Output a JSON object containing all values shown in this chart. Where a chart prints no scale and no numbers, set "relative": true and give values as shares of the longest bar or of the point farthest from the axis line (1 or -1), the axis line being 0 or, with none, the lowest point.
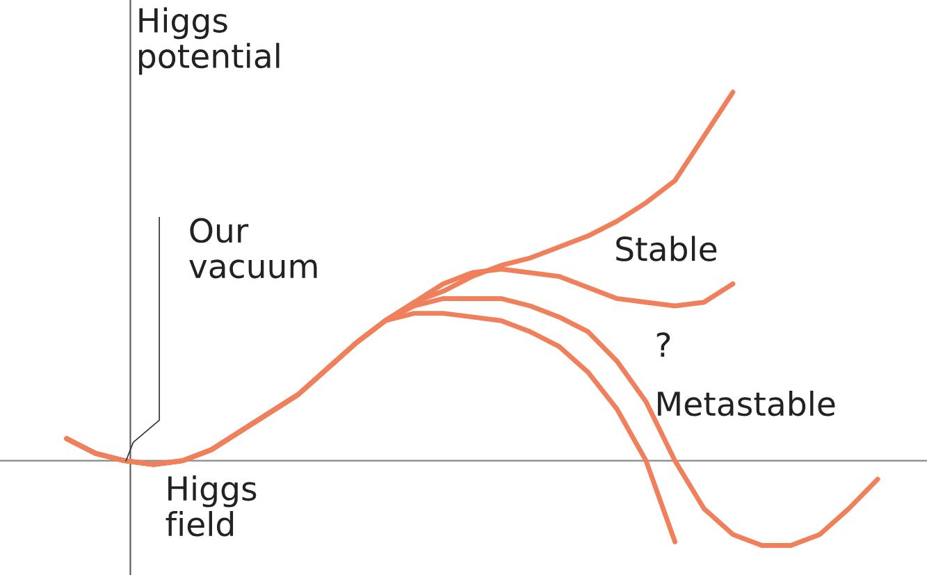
{
  "chart_data": {
    "type": "line",
    "relative": true,
    "ylabel": "Higgs\npotential",
    "xlabel": "Higgs\nfield",
    "categories": [
      null,
      null,
      null,
      null,
      null,
      null,
      null,
      null,
      null,
      null,
      null,
      null,
      null,
      null,
      null,
      null,
      null,
      null,
      null,
      null,
      null,
      null,
      null,
      null,
      null,
      null,
      null,
      null,
      null
    ],
    "series": [
      {
        "color": "#f0805c",
        "values": [
          0.06,
          0.02,
          0.0,
          -0.01,
          0.0,
          0.03,
          0.08,
          0.13,
          0.18,
          0.25,
          0.32,
          0.38,
          0.43,
          0.46,
          0.5,
          0.53,
          0.55,
          0.58,
          0.61,
          0.65,
          0.7,
          0.76,
          0.88,
          1.0,
          null,
          null,
          null,
          null,
          null
        ]
      },
      {
        "color": "#f0805c",
        "values": [
          0.06,
          0.02,
          0.0,
          -0.01,
          0.0,
          0.03,
          0.08,
          0.13,
          0.18,
          0.25,
          0.32,
          0.38,
          0.43,
          0.48,
          0.51,
          0.52,
          0.51,
          0.5,
          0.47,
          0.44,
          0.43,
          0.42,
          0.43,
          0.48,
          null,
          null,
          null,
          null,
          null
        ]
      },
      {
        "color": "#f0805c",
        "values": [
          0.06,
          0.02,
          0.0,
          -0.01,
          0.0,
          0.03,
          0.08,
          0.13,
          0.18,
          0.25,
          0.32,
          0.38,
          0.42,
          0.44,
          0.44,
          0.44,
          0.42,
          0.39,
          0.35,
          0.27,
          0.16,
          0.0,
          -0.13,
          -0.2,
          -0.23,
          -0.23,
          -0.2,
          -0.13,
          -0.05
        ]
      },
      {
        "color": "#f0805c",
        "values": [
          0.06,
          0.02,
          0.0,
          -0.01,
          0.0,
          0.03,
          0.08,
          0.13,
          0.18,
          0.25,
          0.32,
          0.38,
          0.4,
          0.4,
          0.39,
          0.38,
          0.35,
          0.31,
          0.24,
          0.14,
          0.0,
          -0.22,
          null,
          null,
          null,
          null,
          null,
          null,
          null
        ]
      }
    ],
    "annotations": [
      "Our\nvacuum",
      "Stable",
      "?",
      "Metastable"
    ],
    "legend": false,
    "marker": "none",
    "line_style": "solid"
  }
}
